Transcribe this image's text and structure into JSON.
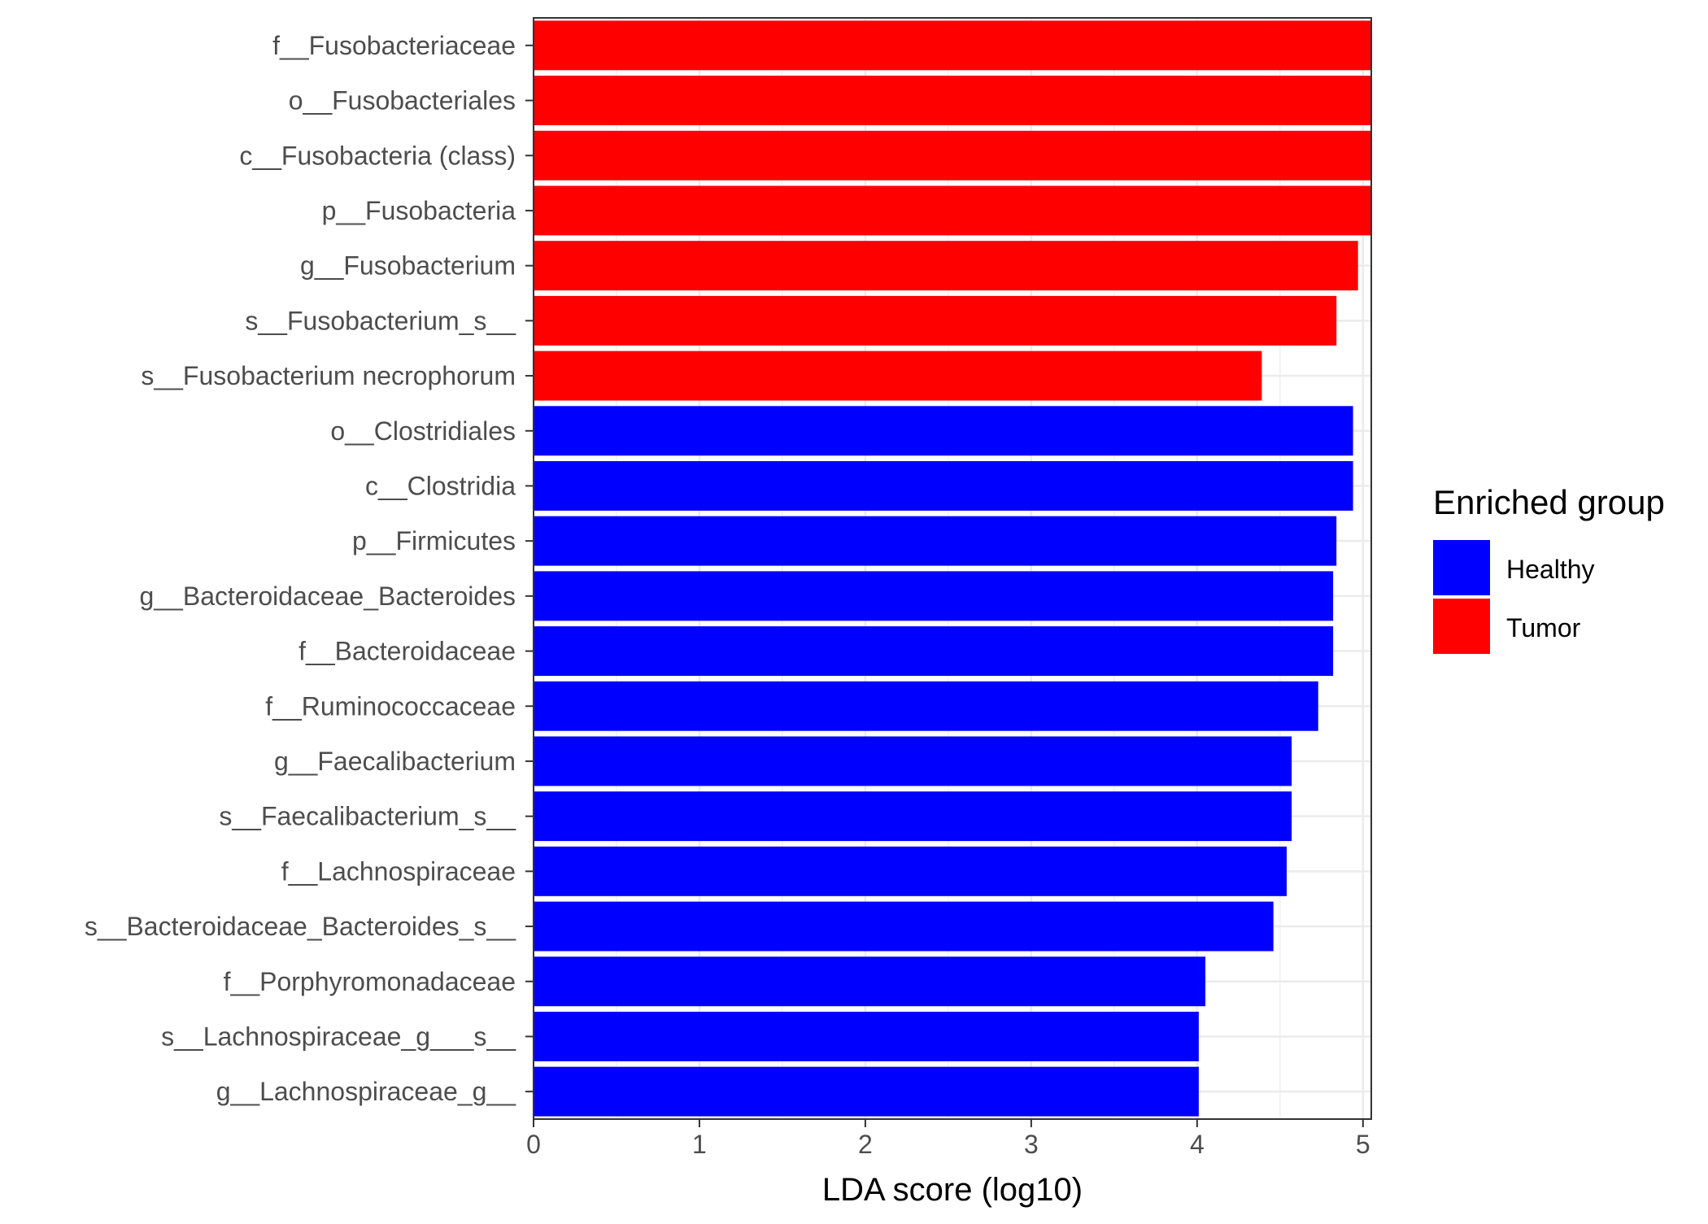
{
  "chart_data": {
    "type": "bar",
    "orientation": "horizontal",
    "categories": [
      "f__Fusobacteriaceae",
      "o__Fusobacteriales",
      "c__Fusobacteria (class)",
      "p__Fusobacteria",
      "g__Fusobacterium",
      "s__Fusobacterium_s__",
      "s__Fusobacterium necrophorum",
      "o__Clostridiales",
      "c__Clostridia",
      "p__Firmicutes",
      "g__Bacteroidaceae_Bacteroides",
      "f__Bacteroidaceae",
      "f__Ruminococcaceae",
      "g__Faecalibacterium",
      "s__Faecalibacterium_s__",
      "f__Lachnospiraceae",
      "s__Bacteroidaceae_Bacteroides_s__",
      "f__Porphyromonadaceae",
      "s__Lachnospiraceae_g___s__",
      "g__Lachnospiraceae_g__"
    ],
    "values": [
      5.05,
      5.05,
      5.05,
      5.05,
      4.97,
      4.84,
      4.39,
      4.94,
      4.94,
      4.84,
      4.82,
      4.82,
      4.73,
      4.57,
      4.57,
      4.54,
      4.46,
      4.05,
      4.01,
      4.01
    ],
    "groups": [
      "Tumor",
      "Tumor",
      "Tumor",
      "Tumor",
      "Tumor",
      "Tumor",
      "Tumor",
      "Healthy",
      "Healthy",
      "Healthy",
      "Healthy",
      "Healthy",
      "Healthy",
      "Healthy",
      "Healthy",
      "Healthy",
      "Healthy",
      "Healthy",
      "Healthy",
      "Healthy"
    ],
    "xlabel": "LDA score (log10)",
    "ylabel": "",
    "xlim": [
      0,
      5.05
    ],
    "xticks": [
      "0",
      "1",
      "2",
      "3",
      "4",
      "5"
    ],
    "grid": true,
    "legend": {
      "title": "Enriched group",
      "placement": "right",
      "entries": [
        {
          "label": "Healthy",
          "color": "#0000ff"
        },
        {
          "label": "Tumor",
          "color": "#ff0000"
        }
      ]
    },
    "colors": {
      "Healthy": "#0000ff",
      "Tumor": "#ff0000"
    }
  }
}
